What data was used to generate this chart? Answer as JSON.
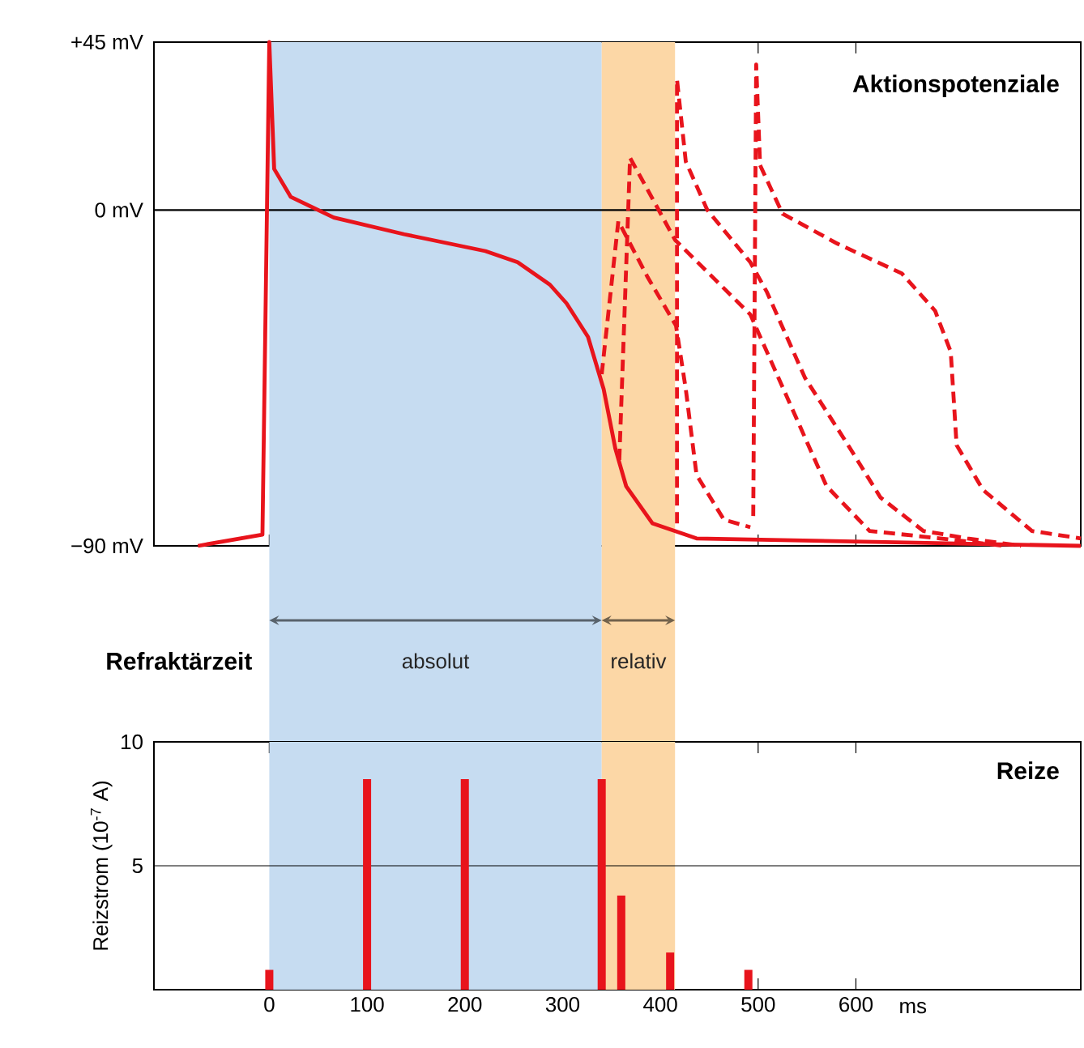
{
  "chart_data": [
    {
      "type": "line",
      "title": "Aktionspotenziale",
      "xlim": [
        -118,
        830
      ],
      "xticks": [
        0,
        100,
        200,
        300,
        400,
        500,
        600
      ],
      "ylim": [
        -90,
        45
      ],
      "yticks": [
        {
          "value": 45,
          "label": "+45 mV"
        },
        {
          "value": 0,
          "label": "0 mV"
        },
        {
          "value": -90,
          "label": "−90 mV"
        }
      ],
      "tick_labels": "y",
      "ref_lines": [
        {
          "axis": "y",
          "value": 0
        }
      ],
      "bands": [
        {
          "axis": "x",
          "from": 0,
          "to": 340,
          "label": "absolut",
          "color": "#c6dcf1"
        },
        {
          "axis": "x",
          "from": 340,
          "to": 415,
          "label": "relativ",
          "color": "#fcd7a6"
        }
      ],
      "annotations": [
        "Refraktärzeit"
      ],
      "series": [
        {
          "color": "#e8141c",
          "line_style": "solid",
          "x": [
            -73,
            -7,
            0,
            5,
            22,
            66,
            138,
            221,
            254,
            287,
            304,
            326,
            342,
            354,
            365,
            392,
            437,
            830
          ],
          "values": [
            -90,
            -87,
            45,
            11,
            3.5,
            -2,
            -6.5,
            -11,
            -14,
            -20,
            -25,
            -34,
            -48,
            -64,
            -74,
            -84,
            -88,
            -90
          ]
        },
        {
          "color": "#e8141c",
          "line_style": "dashed",
          "x": [
            340,
            357,
            387,
            416,
            426,
            437,
            465,
            492
          ],
          "values": [
            -44,
            -3,
            -18,
            -31,
            -48,
            -71,
            -83,
            -85
          ]
        },
        {
          "color": "#e8141c",
          "line_style": "dashed",
          "x": [
            358,
            369,
            415,
            492,
            531,
            570,
            614,
            686,
            752
          ],
          "values": [
            -67,
            14,
            -8,
            -28,
            -51,
            -74,
            -86,
            -88,
            -90
          ]
        },
        {
          "color": "#e8141c",
          "line_style": "dashed",
          "x": [
            417,
            417,
            426,
            448,
            492,
            509,
            548,
            592,
            625,
            669,
            714,
            769
          ],
          "values": [
            -84,
            35,
            13,
            0,
            -14,
            -22,
            -45,
            -63,
            -77,
            -86,
            -88,
            -90
          ]
        },
        {
          "color": "#e8141c",
          "line_style": "dashed",
          "x": [
            495,
            498,
            502,
            525,
            581,
            647,
            681,
            697,
            703,
            730,
            780,
            830
          ],
          "values": [
            -82,
            39,
            12,
            -1,
            -9,
            -17,
            -27,
            -38,
            -63,
            -75,
            -86,
            -88
          ]
        }
      ]
    },
    {
      "type": "bar",
      "title": "Reize",
      "x": [
        0,
        100,
        200,
        340,
        360,
        410,
        490
      ],
      "values": [
        0.8,
        8.5,
        8.5,
        8.5,
        3.8,
        1.5,
        0.8
      ],
      "color": "#e8141c",
      "xlim": [
        -118,
        830
      ],
      "xticks": [
        0,
        100,
        200,
        300,
        400,
        500,
        600
      ],
      "xlabel": "ms",
      "ylabel": "Reizstrom (10$^{-7}$ A)",
      "ylim": [
        0,
        10
      ],
      "yticks": [
        5,
        10
      ],
      "ref_lines": [
        {
          "axis": "y",
          "value": 5
        }
      ],
      "bands": [
        {
          "axis": "x",
          "from": 0,
          "to": 340,
          "color": "#c6dcf1"
        },
        {
          "axis": "x",
          "from": 340,
          "to": 415,
          "color": "#fcd7a6"
        }
      ]
    }
  ]
}
